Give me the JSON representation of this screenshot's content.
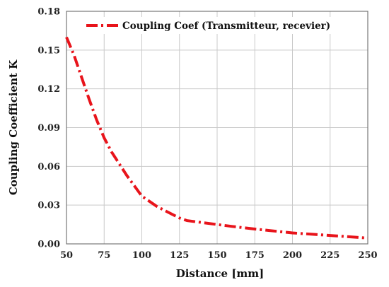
{
  "chart_data": {
    "type": "line",
    "xlabel": "Distance [mm]",
    "ylabel": "Coupling Coefficient K",
    "xlim": [
      50,
      250
    ],
    "ylim": [
      0,
      0.18
    ],
    "xticks": [
      50,
      75,
      100,
      125,
      150,
      175,
      200,
      225,
      250
    ],
    "yticks": [
      "0.00",
      "0.03",
      "0.06",
      "0.09",
      "0.12",
      "0.15",
      "0.18"
    ],
    "grid": true,
    "legend_position": "top-right",
    "series": [
      {
        "name": "Coupling Coef (Transmitteur,  recevier)",
        "color": "#e8141b",
        "style": "dash-dot",
        "x": [
          50,
          55,
          60,
          65,
          70,
          75,
          80,
          90,
          100,
          110,
          120,
          125,
          130,
          140,
          150,
          160,
          175,
          200,
          225,
          250
        ],
        "y": [
          0.16,
          0.146,
          0.129,
          0.112,
          0.096,
          0.082,
          0.071,
          0.053,
          0.037,
          0.029,
          0.023,
          0.02,
          0.018,
          0.0165,
          0.015,
          0.0135,
          0.0115,
          0.0085,
          0.0065,
          0.0045
        ]
      }
    ]
  }
}
